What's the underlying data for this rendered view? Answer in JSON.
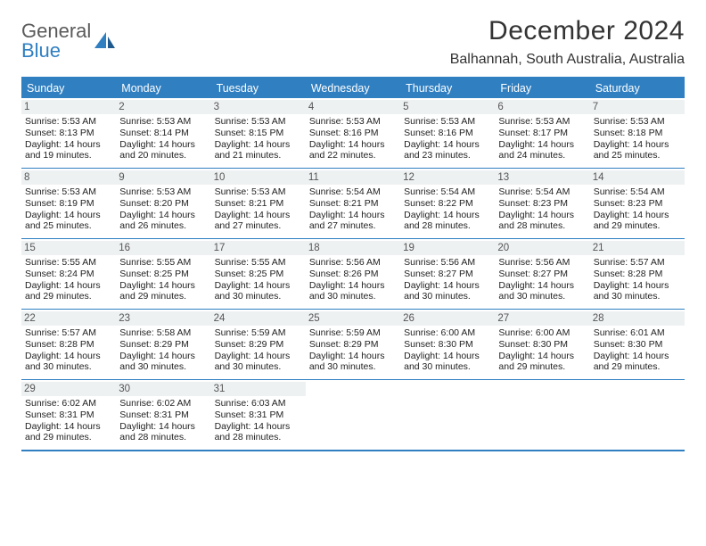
{
  "logo": {
    "word1": "General",
    "word2": "Blue"
  },
  "header": {
    "month_title": "December 2024",
    "location": "Balhannah, South Australia, Australia"
  },
  "colors": {
    "accent": "#2f7fc1",
    "weekday_text": "#ffffff",
    "daynum_bg": "#eef1f2",
    "text": "#222222",
    "logo_gray": "#5a5a5a",
    "title_color": "#333333"
  },
  "weekdays": [
    "Sunday",
    "Monday",
    "Tuesday",
    "Wednesday",
    "Thursday",
    "Friday",
    "Saturday"
  ],
  "weeks": [
    [
      {
        "num": "1",
        "sunrise": "Sunrise: 5:53 AM",
        "sunset": "Sunset: 8:13 PM",
        "daylight1": "Daylight: 14 hours",
        "daylight2": "and 19 minutes."
      },
      {
        "num": "2",
        "sunrise": "Sunrise: 5:53 AM",
        "sunset": "Sunset: 8:14 PM",
        "daylight1": "Daylight: 14 hours",
        "daylight2": "and 20 minutes."
      },
      {
        "num": "3",
        "sunrise": "Sunrise: 5:53 AM",
        "sunset": "Sunset: 8:15 PM",
        "daylight1": "Daylight: 14 hours",
        "daylight2": "and 21 minutes."
      },
      {
        "num": "4",
        "sunrise": "Sunrise: 5:53 AM",
        "sunset": "Sunset: 8:16 PM",
        "daylight1": "Daylight: 14 hours",
        "daylight2": "and 22 minutes."
      },
      {
        "num": "5",
        "sunrise": "Sunrise: 5:53 AM",
        "sunset": "Sunset: 8:16 PM",
        "daylight1": "Daylight: 14 hours",
        "daylight2": "and 23 minutes."
      },
      {
        "num": "6",
        "sunrise": "Sunrise: 5:53 AM",
        "sunset": "Sunset: 8:17 PM",
        "daylight1": "Daylight: 14 hours",
        "daylight2": "and 24 minutes."
      },
      {
        "num": "7",
        "sunrise": "Sunrise: 5:53 AM",
        "sunset": "Sunset: 8:18 PM",
        "daylight1": "Daylight: 14 hours",
        "daylight2": "and 25 minutes."
      }
    ],
    [
      {
        "num": "8",
        "sunrise": "Sunrise: 5:53 AM",
        "sunset": "Sunset: 8:19 PM",
        "daylight1": "Daylight: 14 hours",
        "daylight2": "and 25 minutes."
      },
      {
        "num": "9",
        "sunrise": "Sunrise: 5:53 AM",
        "sunset": "Sunset: 8:20 PM",
        "daylight1": "Daylight: 14 hours",
        "daylight2": "and 26 minutes."
      },
      {
        "num": "10",
        "sunrise": "Sunrise: 5:53 AM",
        "sunset": "Sunset: 8:21 PM",
        "daylight1": "Daylight: 14 hours",
        "daylight2": "and 27 minutes."
      },
      {
        "num": "11",
        "sunrise": "Sunrise: 5:54 AM",
        "sunset": "Sunset: 8:21 PM",
        "daylight1": "Daylight: 14 hours",
        "daylight2": "and 27 minutes."
      },
      {
        "num": "12",
        "sunrise": "Sunrise: 5:54 AM",
        "sunset": "Sunset: 8:22 PM",
        "daylight1": "Daylight: 14 hours",
        "daylight2": "and 28 minutes."
      },
      {
        "num": "13",
        "sunrise": "Sunrise: 5:54 AM",
        "sunset": "Sunset: 8:23 PM",
        "daylight1": "Daylight: 14 hours",
        "daylight2": "and 28 minutes."
      },
      {
        "num": "14",
        "sunrise": "Sunrise: 5:54 AM",
        "sunset": "Sunset: 8:23 PM",
        "daylight1": "Daylight: 14 hours",
        "daylight2": "and 29 minutes."
      }
    ],
    [
      {
        "num": "15",
        "sunrise": "Sunrise: 5:55 AM",
        "sunset": "Sunset: 8:24 PM",
        "daylight1": "Daylight: 14 hours",
        "daylight2": "and 29 minutes."
      },
      {
        "num": "16",
        "sunrise": "Sunrise: 5:55 AM",
        "sunset": "Sunset: 8:25 PM",
        "daylight1": "Daylight: 14 hours",
        "daylight2": "and 29 minutes."
      },
      {
        "num": "17",
        "sunrise": "Sunrise: 5:55 AM",
        "sunset": "Sunset: 8:25 PM",
        "daylight1": "Daylight: 14 hours",
        "daylight2": "and 30 minutes."
      },
      {
        "num": "18",
        "sunrise": "Sunrise: 5:56 AM",
        "sunset": "Sunset: 8:26 PM",
        "daylight1": "Daylight: 14 hours",
        "daylight2": "and 30 minutes."
      },
      {
        "num": "19",
        "sunrise": "Sunrise: 5:56 AM",
        "sunset": "Sunset: 8:27 PM",
        "daylight1": "Daylight: 14 hours",
        "daylight2": "and 30 minutes."
      },
      {
        "num": "20",
        "sunrise": "Sunrise: 5:56 AM",
        "sunset": "Sunset: 8:27 PM",
        "daylight1": "Daylight: 14 hours",
        "daylight2": "and 30 minutes."
      },
      {
        "num": "21",
        "sunrise": "Sunrise: 5:57 AM",
        "sunset": "Sunset: 8:28 PM",
        "daylight1": "Daylight: 14 hours",
        "daylight2": "and 30 minutes."
      }
    ],
    [
      {
        "num": "22",
        "sunrise": "Sunrise: 5:57 AM",
        "sunset": "Sunset: 8:28 PM",
        "daylight1": "Daylight: 14 hours",
        "daylight2": "and 30 minutes."
      },
      {
        "num": "23",
        "sunrise": "Sunrise: 5:58 AM",
        "sunset": "Sunset: 8:29 PM",
        "daylight1": "Daylight: 14 hours",
        "daylight2": "and 30 minutes."
      },
      {
        "num": "24",
        "sunrise": "Sunrise: 5:59 AM",
        "sunset": "Sunset: 8:29 PM",
        "daylight1": "Daylight: 14 hours",
        "daylight2": "and 30 minutes."
      },
      {
        "num": "25",
        "sunrise": "Sunrise: 5:59 AM",
        "sunset": "Sunset: 8:29 PM",
        "daylight1": "Daylight: 14 hours",
        "daylight2": "and 30 minutes."
      },
      {
        "num": "26",
        "sunrise": "Sunrise: 6:00 AM",
        "sunset": "Sunset: 8:30 PM",
        "daylight1": "Daylight: 14 hours",
        "daylight2": "and 30 minutes."
      },
      {
        "num": "27",
        "sunrise": "Sunrise: 6:00 AM",
        "sunset": "Sunset: 8:30 PM",
        "daylight1": "Daylight: 14 hours",
        "daylight2": "and 29 minutes."
      },
      {
        "num": "28",
        "sunrise": "Sunrise: 6:01 AM",
        "sunset": "Sunset: 8:30 PM",
        "daylight1": "Daylight: 14 hours",
        "daylight2": "and 29 minutes."
      }
    ],
    [
      {
        "num": "29",
        "sunrise": "Sunrise: 6:02 AM",
        "sunset": "Sunset: 8:31 PM",
        "daylight1": "Daylight: 14 hours",
        "daylight2": "and 29 minutes."
      },
      {
        "num": "30",
        "sunrise": "Sunrise: 6:02 AM",
        "sunset": "Sunset: 8:31 PM",
        "daylight1": "Daylight: 14 hours",
        "daylight2": "and 28 minutes."
      },
      {
        "num": "31",
        "sunrise": "Sunrise: 6:03 AM",
        "sunset": "Sunset: 8:31 PM",
        "daylight1": "Daylight: 14 hours",
        "daylight2": "and 28 minutes."
      },
      null,
      null,
      null,
      null
    ]
  ]
}
